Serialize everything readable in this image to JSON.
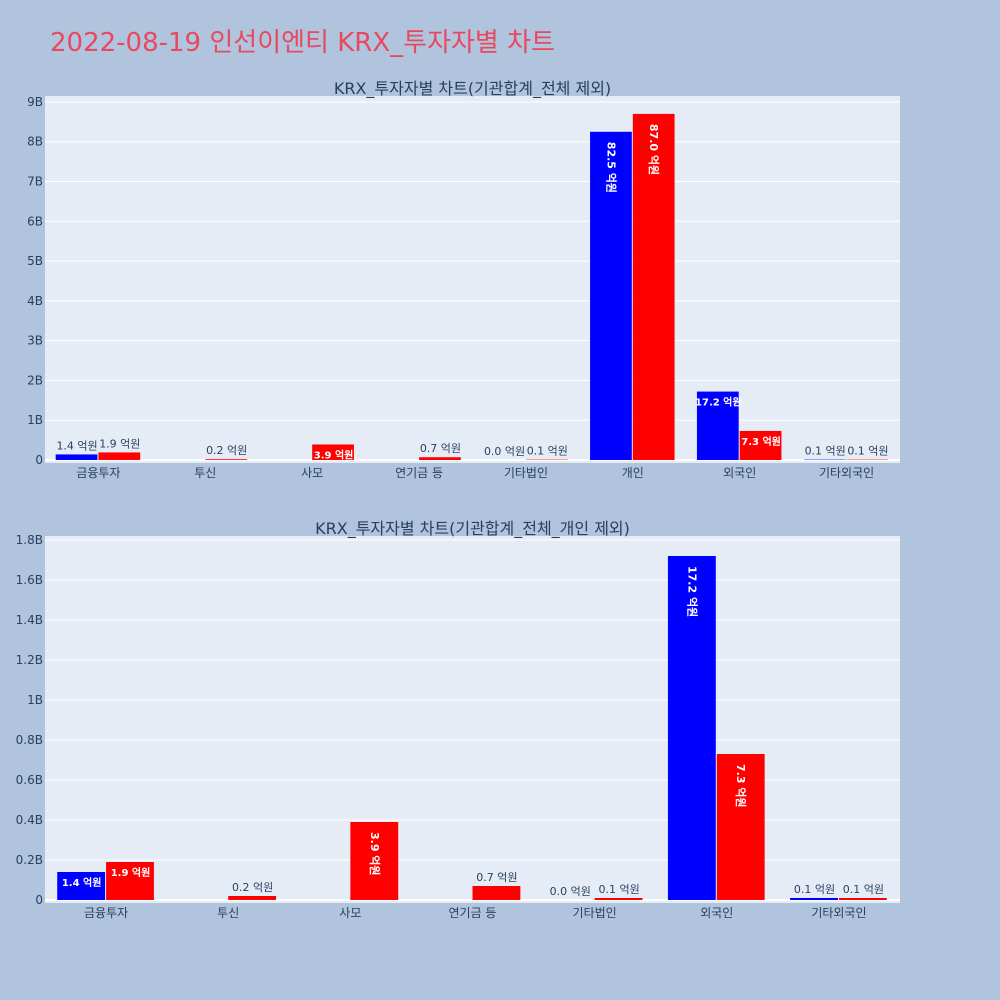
{
  "page_title": "2022-08-19 인선이엔티 KRX_투자자별 차트",
  "colors": {
    "buy": "#0000ff",
    "sell": "#ff0000",
    "plot_bg": "#e5ecf6",
    "page_bg": "#b0c4de",
    "title": "#e8495f"
  },
  "chart_data": [
    {
      "type": "bar",
      "title": "KRX_투자자별 차트(기관합계_전체 제외)",
      "categories": [
        "금융투자",
        "투신",
        "사모",
        "연기금 등",
        "기타법인",
        "개인",
        "외국인",
        "기타외국인"
      ],
      "series": [
        {
          "values": [
            0.14,
            0.0,
            0.0,
            0.0,
            0.0,
            8.25,
            1.72,
            0.01
          ]
        },
        {
          "values": [
            0.19,
            0.02,
            0.39,
            0.07,
            0.01,
            8.7,
            0.73,
            0.01
          ]
        }
      ],
      "bar_labels": [
        [
          "1.4 억원",
          "",
          "",
          "",
          "0.0 억원",
          "82.5 억원",
          "17.2 억원",
          "0.1 억원"
        ],
        [
          "1.9 억원",
          "0.2 억원",
          "3.9 억원",
          "0.7 억원",
          "0.1 억원",
          "87.0 억원",
          "7.3 억원",
          "0.1 억원"
        ]
      ],
      "yticks": [
        "0",
        "1B",
        "2B",
        "3B",
        "4B",
        "5B",
        "6B",
        "7B",
        "8B",
        "9B"
      ],
      "ylim": [
        0,
        9.15
      ],
      "legend": "none"
    },
    {
      "type": "bar",
      "title": "KRX_투자자별 차트(기관합계_전체_개인 제외)",
      "categories": [
        "금융투자",
        "투신",
        "사모",
        "연기금 등",
        "기타법인",
        "외국인",
        "기타외국인"
      ],
      "series": [
        {
          "values": [
            0.14,
            0.0,
            0.0,
            0.0,
            0.0,
            1.72,
            0.01
          ]
        },
        {
          "values": [
            0.19,
            0.02,
            0.39,
            0.07,
            0.01,
            0.73,
            0.01
          ]
        }
      ],
      "bar_labels": [
        [
          "1.4 억원",
          "",
          "",
          "",
          "0.0 억원",
          "17.2 억원",
          "0.1 억원"
        ],
        [
          "1.9 억원",
          "0.2 억원",
          "3.9 억원",
          "0.7 억원",
          "0.1 억원",
          "7.3 억원",
          "0.1 억원"
        ]
      ],
      "yticks": [
        "0",
        "0.2B",
        "0.4B",
        "0.6B",
        "0.8B",
        "1B",
        "1.2B",
        "1.4B",
        "1.6B",
        "1.8B"
      ],
      "ylim": [
        0,
        1.82
      ],
      "legend": "none"
    }
  ]
}
